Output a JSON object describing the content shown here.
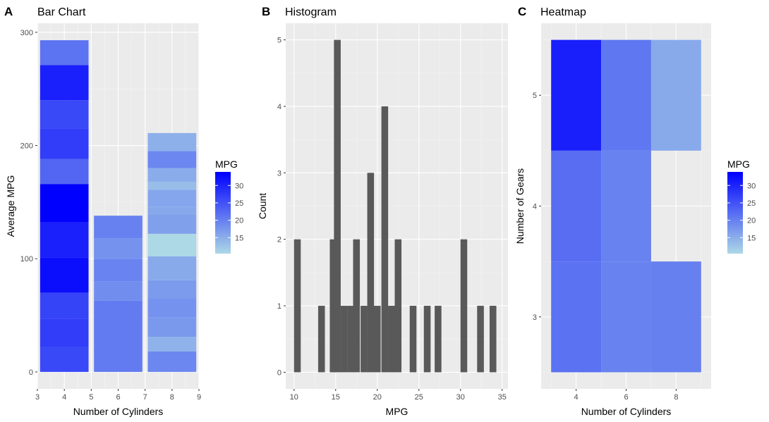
{
  "chart_data": [
    {
      "panel": "A",
      "type": "bar",
      "title": "Bar Chart",
      "xlabel": "Number of Cylinders",
      "ylabel": "Average MPG",
      "xlim": [
        3,
        9
      ],
      "ylim": [
        -15,
        308
      ],
      "xticks": [
        3,
        4,
        5,
        6,
        7,
        8,
        9
      ],
      "yticks": [
        0,
        100,
        200,
        300
      ],
      "grid": true,
      "legend": {
        "title": "MPG",
        "placement": "right",
        "ticks": [
          15,
          20,
          25,
          30
        ]
      },
      "color_scale": {
        "low": "#add8e6",
        "high": "#0000ff",
        "min": 10.4,
        "max": 33.9
      },
      "bars": [
        {
          "x": 4,
          "segments": [
            {
              "ymin": 0,
              "ymax": 22,
              "mpg": 26
            },
            {
              "ymin": 22,
              "ymax": 47,
              "mpg": 27.3
            },
            {
              "ymin": 47,
              "ymax": 70,
              "mpg": 26.5
            },
            {
              "ymin": 70,
              "ymax": 101,
              "mpg": 32.4
            },
            {
              "ymin": 101,
              "ymax": 132,
              "mpg": 30.4
            },
            {
              "ymin": 132,
              "ymax": 166,
              "mpg": 33.9
            },
            {
              "ymin": 166,
              "ymax": 188,
              "mpg": 22.8
            },
            {
              "ymin": 188,
              "ymax": 215,
              "mpg": 27.3
            },
            {
              "ymin": 215,
              "ymax": 240,
              "mpg": 26
            },
            {
              "ymin": 240,
              "ymax": 271,
              "mpg": 30.4
            },
            {
              "ymin": 271,
              "ymax": 293,
              "mpg": 21.4
            }
          ]
        },
        {
          "x": 6,
          "segments": [
            {
              "ymin": 0,
              "ymax": 63,
              "mpg": 20.5
            },
            {
              "ymin": 63,
              "ymax": 80,
              "mpg": 18.5
            },
            {
              "ymin": 80,
              "ymax": 100,
              "mpg": 19.6
            },
            {
              "ymin": 100,
              "ymax": 118,
              "mpg": 18
            },
            {
              "ymin": 118,
              "ymax": 138,
              "mpg": 19.9
            }
          ]
        },
        {
          "x": 8,
          "segments": [
            {
              "ymin": 0,
              "ymax": 18,
              "mpg": 19.2
            },
            {
              "ymin": 18,
              "ymax": 31,
              "mpg": 14.5
            },
            {
              "ymin": 31,
              "ymax": 48,
              "mpg": 17.3
            },
            {
              "ymin": 48,
              "ymax": 65,
              "mpg": 18
            },
            {
              "ymin": 65,
              "ymax": 81,
              "mpg": 17
            },
            {
              "ymin": 81,
              "ymax": 102,
              "mpg": 15.4
            },
            {
              "ymin": 102,
              "ymax": 122,
              "mpg": 10.4
            },
            {
              "ymin": 122,
              "ymax": 139,
              "mpg": 16.5
            },
            {
              "ymin": 139,
              "ymax": 146,
              "mpg": 15.5
            },
            {
              "ymin": 146,
              "ymax": 161,
              "mpg": 15.8
            },
            {
              "ymin": 161,
              "ymax": 168,
              "mpg": 13.3
            },
            {
              "ymin": 168,
              "ymax": 180,
              "mpg": 15.2
            },
            {
              "ymin": 180,
              "ymax": 195,
              "mpg": 19.2
            },
            {
              "ymin": 195,
              "ymax": 211,
              "mpg": 14.7
            }
          ]
        }
      ]
    },
    {
      "panel": "B",
      "type": "bar",
      "title": "Histogram",
      "xlabel": "MPG",
      "ylabel": "Count",
      "xlim": [
        9,
        35.7
      ],
      "ylim": [
        -0.25,
        5.25
      ],
      "xticks": [
        10,
        15,
        20,
        25,
        30,
        35
      ],
      "yticks": [
        0,
        1,
        2,
        3,
        4,
        5
      ],
      "grid": true,
      "bin_width": 0.81,
      "bar_color": "#595959",
      "bins": [
        {
          "x": 10.4,
          "count": 2
        },
        {
          "x": 13.3,
          "count": 1
        },
        {
          "x": 14.7,
          "count": 2
        },
        {
          "x": 15.2,
          "count": 5
        },
        {
          "x": 16.0,
          "count": 1
        },
        {
          "x": 16.8,
          "count": 1
        },
        {
          "x": 17.5,
          "count": 2
        },
        {
          "x": 18.4,
          "count": 1
        },
        {
          "x": 19.2,
          "count": 3
        },
        {
          "x": 20.0,
          "count": 1
        },
        {
          "x": 20.9,
          "count": 4
        },
        {
          "x": 21.7,
          "count": 1
        },
        {
          "x": 22.5,
          "count": 2
        },
        {
          "x": 24.3,
          "count": 1
        },
        {
          "x": 26.0,
          "count": 1
        },
        {
          "x": 27.3,
          "count": 1
        },
        {
          "x": 30.4,
          "count": 2
        },
        {
          "x": 32.4,
          "count": 1
        },
        {
          "x": 33.9,
          "count": 1
        }
      ]
    },
    {
      "panel": "C",
      "type": "heatmap",
      "title": "Heatmap",
      "xlabel": "Number of Cylinders",
      "ylabel": "Number of Gears",
      "xlim": [
        2.6,
        9.4
      ],
      "ylim": [
        2.35,
        5.65
      ],
      "xticks": [
        4,
        6,
        8
      ],
      "yticks": [
        3,
        4,
        5
      ],
      "grid": true,
      "legend": {
        "title": "MPG",
        "placement": "right",
        "ticks": [
          15,
          20,
          25,
          30
        ]
      },
      "color_scale": {
        "low": "#add8e6",
        "high": "#0000ff",
        "min": 10.4,
        "max": 33.9
      },
      "cells": [
        {
          "x": 4,
          "y": 3,
          "mpg": 21.5
        },
        {
          "x": 6,
          "y": 3,
          "mpg": 19.75
        },
        {
          "x": 8,
          "y": 3,
          "mpg": 20.0
        },
        {
          "x": 4,
          "y": 4,
          "mpg": 22.0
        },
        {
          "x": 6,
          "y": 4,
          "mpg": 19.75
        },
        {
          "x": 4,
          "y": 5,
          "mpg": 30.5
        },
        {
          "x": 6,
          "y": 5,
          "mpg": 21.0
        },
        {
          "x": 8,
          "y": 5,
          "mpg": 15.4
        }
      ]
    }
  ]
}
